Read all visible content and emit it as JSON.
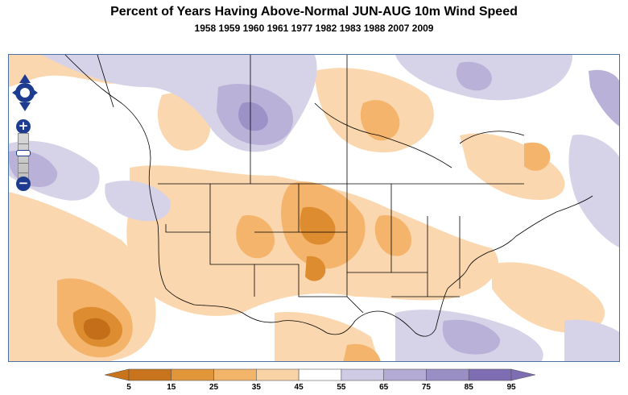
{
  "title": "Percent of Years Having Above-Normal JUN-AUG 10m Wind Speed",
  "subtitle": "1958 1959 1960 1961 1977 1982 1983 1988 2007 2009",
  "controls": {
    "pan_icon": "pan-arrows-icon",
    "zoom_in_label": "+",
    "zoom_out_label": "−"
  },
  "legend": {
    "labels": [
      "5",
      "15",
      "25",
      "35",
      "45",
      "55",
      "65",
      "75",
      "85",
      "95"
    ],
    "colors": [
      "#c8741c",
      "#e2963a",
      "#f2b469",
      "#f9d3a6",
      "#ffffff",
      "#cfcbe4",
      "#b3abd4",
      "#9a8fc5",
      "#7e6db2"
    ]
  },
  "colors": {
    "orange_light": "#fad7ae",
    "orange_mid": "#f4b46c",
    "orange_dark": "#de8c30",
    "orange_darkest": "#c46e1a",
    "purple_light": "#d6d2e8",
    "purple_mid": "#b9b1d8",
    "purple_dark": "#9d92c8",
    "border": "#4a6fa0"
  }
}
